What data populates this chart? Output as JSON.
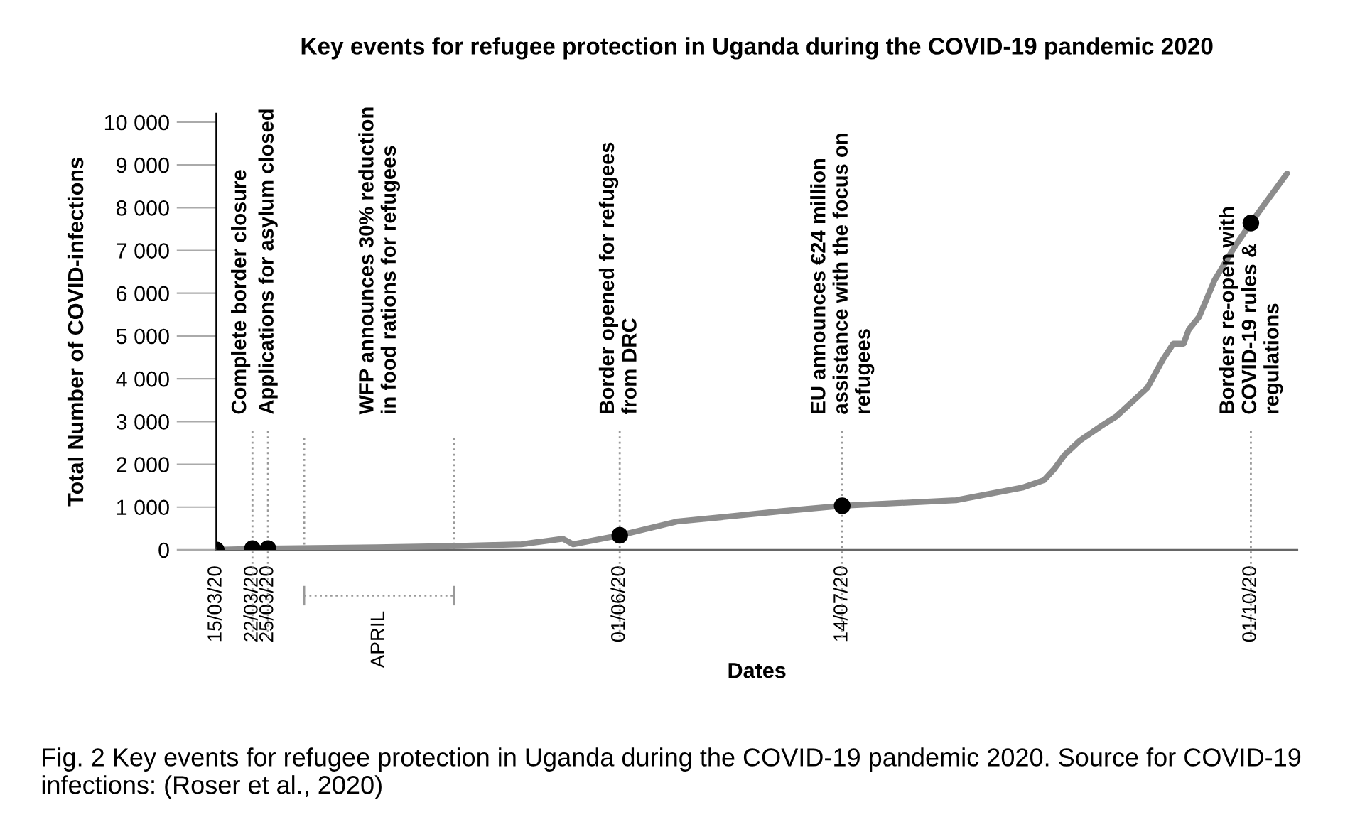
{
  "chart_data": {
    "type": "line",
    "title": "Key events for refugee protection in Uganda during the COVID-19 pandemic 2020",
    "xlabel": "Dates",
    "ylabel": "Total Number of COVID-infections",
    "xlim": [
      "2020-03-15",
      "2020-10-10"
    ],
    "ylim": [
      0,
      10200
    ],
    "xticks": [
      {
        "value": "2020-03-15",
        "label": "15/03/20"
      },
      {
        "value": "2020-03-22",
        "label": "22/03/20"
      },
      {
        "value": "2020-03-25",
        "label": "25/03/20"
      },
      {
        "value": "2020-06-01",
        "label": "01/06/20"
      },
      {
        "value": "2020-07-14",
        "label": "14/07/20"
      },
      {
        "value": "2020-10-01",
        "label": "01/10/20"
      }
    ],
    "yticks": [
      0,
      {
        "value": 1000,
        "label": "1 000"
      },
      {
        "value": 2000,
        "label": "2 000"
      },
      {
        "value": 3000,
        "label": "3 000"
      },
      {
        "value": 4000,
        "label": "4 000"
      },
      {
        "value": 5000,
        "label": "5 000"
      },
      {
        "value": 6000,
        "label": "6 000"
      },
      {
        "value": 7000,
        "label": "7 000"
      },
      {
        "value": 8000,
        "label": "8 000"
      },
      {
        "value": 9000,
        "label": "9 000"
      },
      {
        "value": 10000,
        "label": "10 000"
      }
    ],
    "grid": false,
    "legend": false,
    "series": [
      {
        "color": "#8c8c8c",
        "marker": "none",
        "x": [
          "2020-03-15",
          "2020-03-25",
          "2020-04-15",
          "2020-05-01",
          "2020-05-13",
          "2020-05-21",
          "2020-05-23",
          "2020-06-01",
          "2020-06-12",
          "2020-07-02",
          "2020-07-14",
          "2020-08-05",
          "2020-08-18",
          "2020-08-22",
          "2020-08-24",
          "2020-08-26",
          "2020-08-29",
          "2020-09-02",
          "2020-09-05",
          "2020-09-11",
          "2020-09-14",
          "2020-09-16",
          "2020-09-18",
          "2020-09-19",
          "2020-09-21",
          "2020-09-24",
          "2020-09-28",
          "2020-10-01",
          "2020-10-04",
          "2020-10-08"
        ],
        "values": [
          0,
          30,
          60,
          90,
          130,
          260,
          130,
          340,
          660,
          900,
          1030,
          1160,
          1460,
          1630,
          1890,
          2220,
          2560,
          2890,
          3120,
          3790,
          4450,
          4820,
          4820,
          5150,
          5450,
          6310,
          7110,
          7640,
          8140,
          8800
        ]
      },
      {
        "type": "scatter",
        "color": "#000000",
        "marker": "circle",
        "x": [
          "2020-03-15",
          "2020-03-22",
          "2020-03-25",
          "2020-06-01",
          "2020-07-14",
          "2020-10-01"
        ],
        "values": [
          0,
          30,
          30,
          340,
          1030,
          7640
        ]
      }
    ],
    "ref_lines": [
      {
        "axis": "x",
        "value": "2020-03-22",
        "label": "Complete border closure",
        "color": "#999999",
        "line_style": "dotted"
      },
      {
        "axis": "x",
        "value": "2020-03-25",
        "label": "Applications for asylum closed",
        "color": "#999999",
        "line_style": "dotted"
      },
      {
        "axis": "x",
        "value": "2020-04-01",
        "color": "#999999",
        "line_style": "dotted"
      },
      {
        "axis": "x",
        "value": "2020-04-30",
        "color": "#999999",
        "line_style": "dotted"
      },
      {
        "axis": "x",
        "value": "2020-06-01",
        "label": "Border opened for refugees\nfrom DRC",
        "color": "#999999",
        "line_style": "dotted"
      },
      {
        "axis": "x",
        "value": "2020-07-14",
        "label": "EU announces €24 million\nassistance with the focus on\nrefugees",
        "color": "#999999",
        "line_style": "dotted"
      },
      {
        "axis": "x",
        "value": "2020-10-01",
        "label": "Borders re-open with\nCOVID-19 rules &\nregulations",
        "color": "#999999",
        "line_style": "dotted"
      }
    ],
    "annotations": [
      "WFP announces 30% reduction\nin food rations for refugees",
      "APRIL",
      "Fig. 2 Key events for refugee protection in Uganda during the COVID-19 pandemic 2020. Source for COVID-19 infections: (Roser et al., 2020)"
    ]
  }
}
